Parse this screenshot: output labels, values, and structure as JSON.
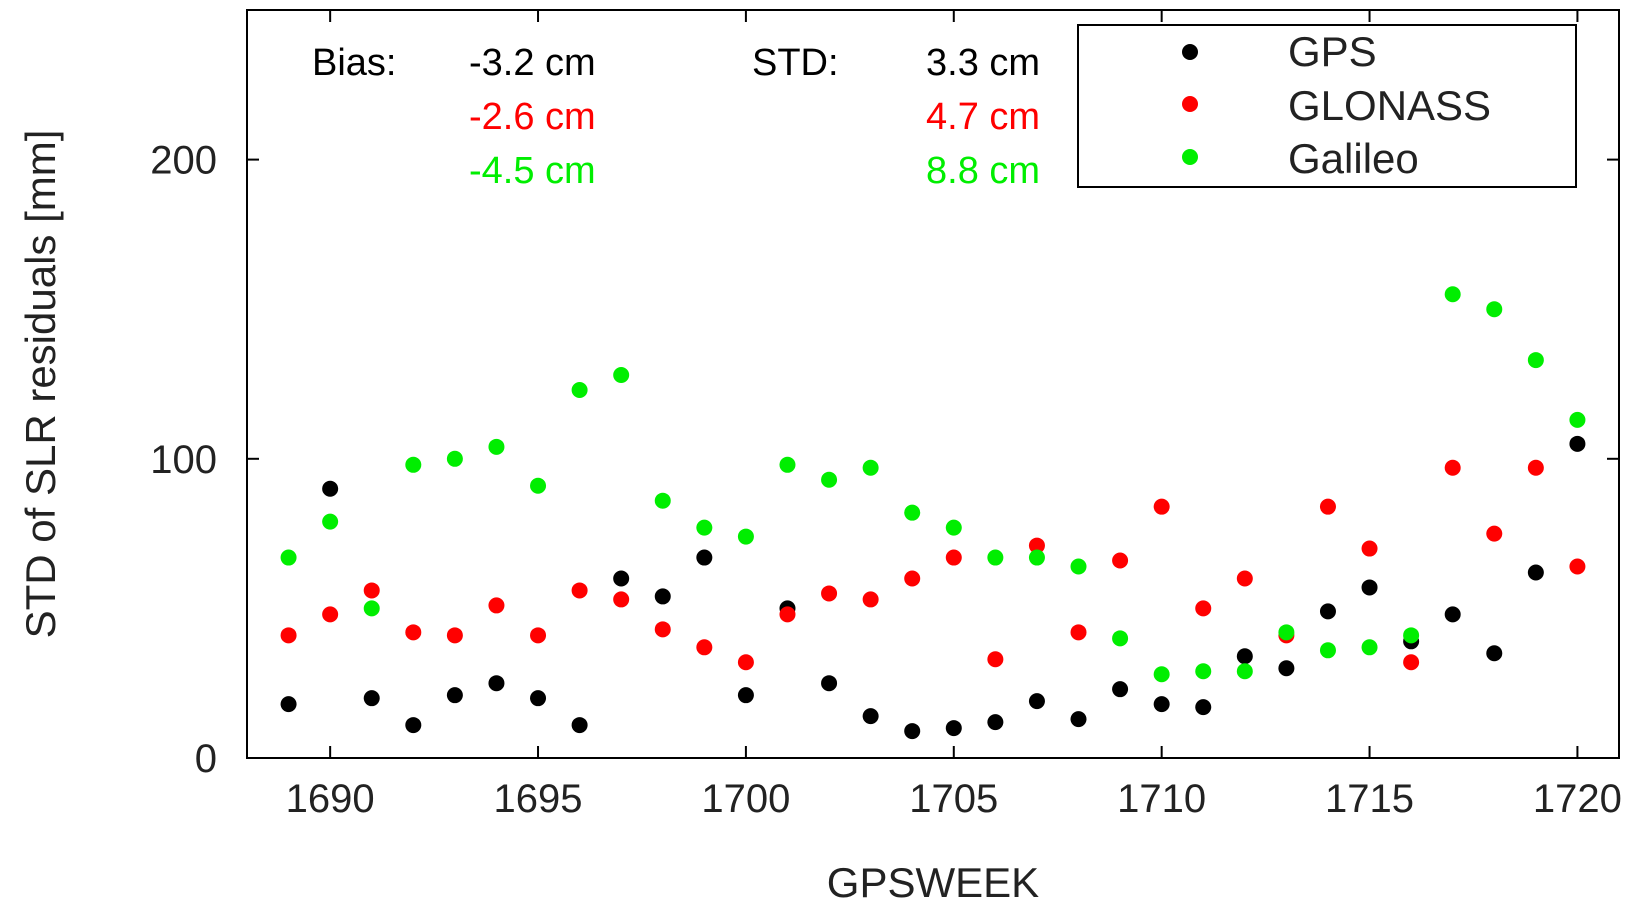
{
  "chart_data": {
    "type": "scatter",
    "xlabel": "GPSWEEK",
    "ylabel": "STD of SLR residuals [mm]",
    "xlim": [
      1688,
      1721
    ],
    "ylim": [
      0,
      250
    ],
    "xticks": [
      "1690",
      "1695",
      "1700",
      "1705",
      "1710",
      "1715",
      "1720"
    ],
    "yticks": [
      "0",
      "100",
      "200"
    ],
    "grid": false,
    "legend_position": "top-right",
    "series": [
      {
        "name": "GPS",
        "color": "#000000",
        "x": [
          1689,
          1690,
          1691,
          1692,
          1693,
          1694,
          1695,
          1696,
          1697,
          1698,
          1699,
          1700,
          1701,
          1702,
          1703,
          1704,
          1705,
          1706,
          1707,
          1708,
          1709,
          1710,
          1711,
          1712,
          1713,
          1714,
          1715,
          1716,
          1717,
          1718,
          1719,
          1720
        ],
        "y": [
          18,
          90,
          20,
          11,
          21,
          25,
          20,
          11,
          60,
          54,
          67,
          21,
          50,
          25,
          14,
          9,
          10,
          12,
          19,
          13,
          23,
          18,
          17,
          34,
          30,
          49,
          57,
          39,
          48,
          35,
          62,
          105
        ]
      },
      {
        "name": "GLONASS",
        "color": "#ff0000",
        "x": [
          1689,
          1690,
          1691,
          1692,
          1693,
          1694,
          1695,
          1696,
          1697,
          1698,
          1699,
          1700,
          1701,
          1702,
          1703,
          1704,
          1705,
          1706,
          1707,
          1708,
          1709,
          1710,
          1711,
          1712,
          1713,
          1714,
          1715,
          1716,
          1717,
          1718,
          1719,
          1720
        ],
        "y": [
          41,
          48,
          56,
          42,
          41,
          51,
          41,
          56,
          53,
          43,
          37,
          32,
          48,
          55,
          53,
          60,
          67,
          33,
          71,
          42,
          66,
          84,
          50,
          60,
          41,
          84,
          70,
          32,
          97,
          75,
          97,
          64
        ]
      },
      {
        "name": "Galileo",
        "color": "#00ee00",
        "x": [
          1689,
          1690,
          1691,
          1692,
          1693,
          1694,
          1695,
          1696,
          1697,
          1698,
          1699,
          1700,
          1701,
          1702,
          1703,
          1704,
          1705,
          1706,
          1707,
          1708,
          1709,
          1710,
          1711,
          1712,
          1713,
          1714,
          1715,
          1716,
          1717,
          1718,
          1719,
          1720
        ],
        "y": [
          67,
          79,
          50,
          98,
          100,
          104,
          91,
          123,
          128,
          86,
          77,
          74,
          98,
          93,
          97,
          82,
          77,
          67,
          67,
          64,
          40,
          28,
          29,
          29,
          42,
          36,
          37,
          41,
          155,
          150,
          133,
          113
        ]
      }
    ],
    "annotations": {
      "bias_label": "Bias:",
      "std_label": "STD:",
      "rows": [
        {
          "color": "#000000",
          "bias": "-3.2 cm",
          "std": "3.3 cm"
        },
        {
          "color": "#ff0000",
          "bias": "-2.6 cm",
          "std": "4.7 cm"
        },
        {
          "color": "#00ee00",
          "bias": "-4.5 cm",
          "std": "8.8 cm"
        }
      ]
    }
  }
}
